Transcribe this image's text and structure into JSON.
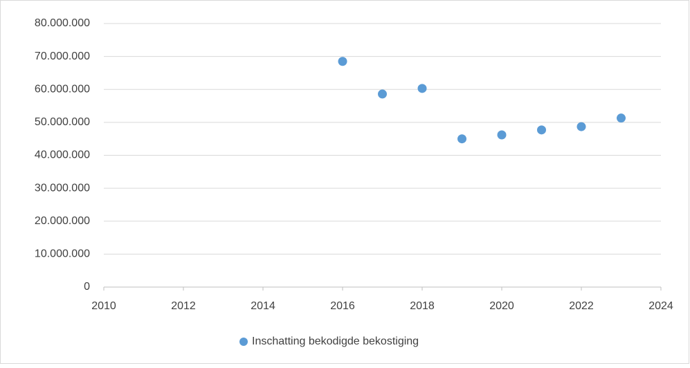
{
  "chart_data": {
    "type": "scatter",
    "x": [
      2016,
      2017,
      2018,
      2019,
      2020,
      2021,
      2022,
      2023
    ],
    "series": [
      {
        "name": "Inschatting bekodigde bekostiging",
        "color": "#5b9bd5",
        "values": [
          68500000,
          58600000,
          60300000,
          45000000,
          46200000,
          47700000,
          48700000,
          51300000
        ]
      }
    ],
    "xlim": [
      2010,
      2024
    ],
    "xticks": [
      2010,
      2012,
      2014,
      2016,
      2018,
      2020,
      2022,
      2024
    ],
    "ylim": [
      0,
      80000000
    ],
    "yticks": [
      0,
      {
        "value": 10000000,
        "label": "10.000.000"
      },
      {
        "value": 20000000,
        "label": "20.000.000"
      },
      {
        "value": 30000000,
        "label": "30.000.000"
      },
      {
        "value": 40000000,
        "label": "40.000.000"
      },
      {
        "value": 50000000,
        "label": "50.000.000"
      },
      {
        "value": 60000000,
        "label": "60.000.000"
      },
      {
        "value": 70000000,
        "label": "70.000.000"
      },
      {
        "value": 80000000,
        "label": "80.000.000"
      }
    ],
    "grid": true,
    "legend": "bottom"
  }
}
